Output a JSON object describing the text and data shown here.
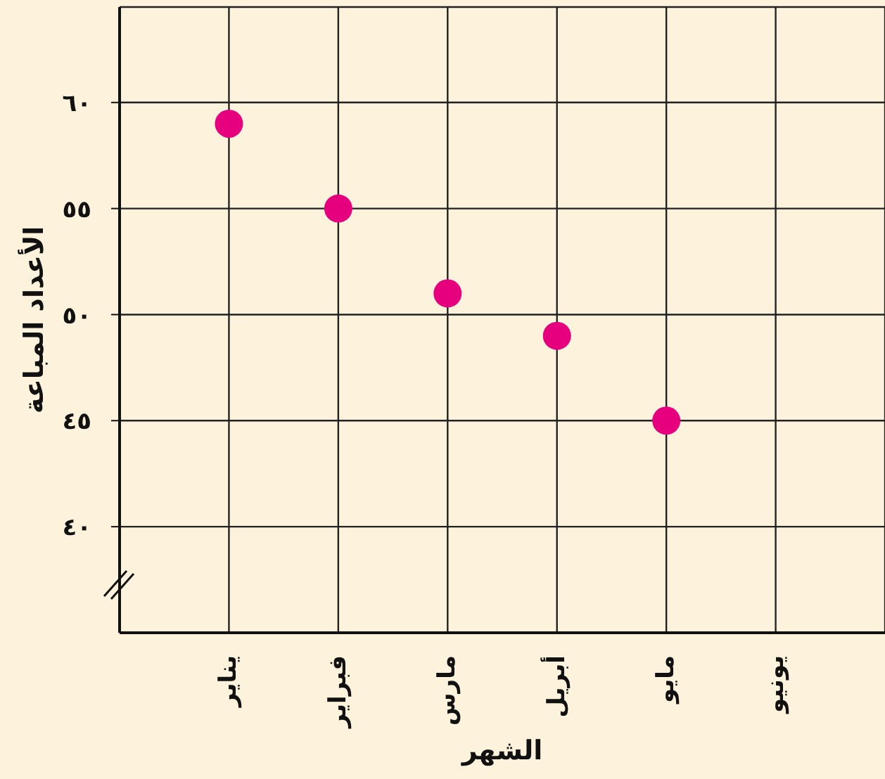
{
  "chart_data": {
    "type": "scatter",
    "xlabel": "الشهر",
    "ylabel": "الأعداد المباعة",
    "categories": [
      "يناير",
      "فبراير",
      "مارس",
      "أبريل",
      "مايو",
      "يونيو"
    ],
    "series": [
      {
        "color": "#e6007e",
        "values": [
          59,
          55,
          51,
          49,
          45,
          null
        ]
      }
    ],
    "ylim": [
      35,
      64.5
    ],
    "yticks": [
      {
        "value": 40,
        "label": "٤٠"
      },
      {
        "value": 45,
        "label": "٤٥"
      },
      {
        "value": 50,
        "label": "٥٠"
      },
      {
        "value": 55,
        "label": "٥٥"
      },
      {
        "value": 60,
        "label": "٦٠"
      }
    ],
    "grid": true,
    "marker": "circle"
  }
}
